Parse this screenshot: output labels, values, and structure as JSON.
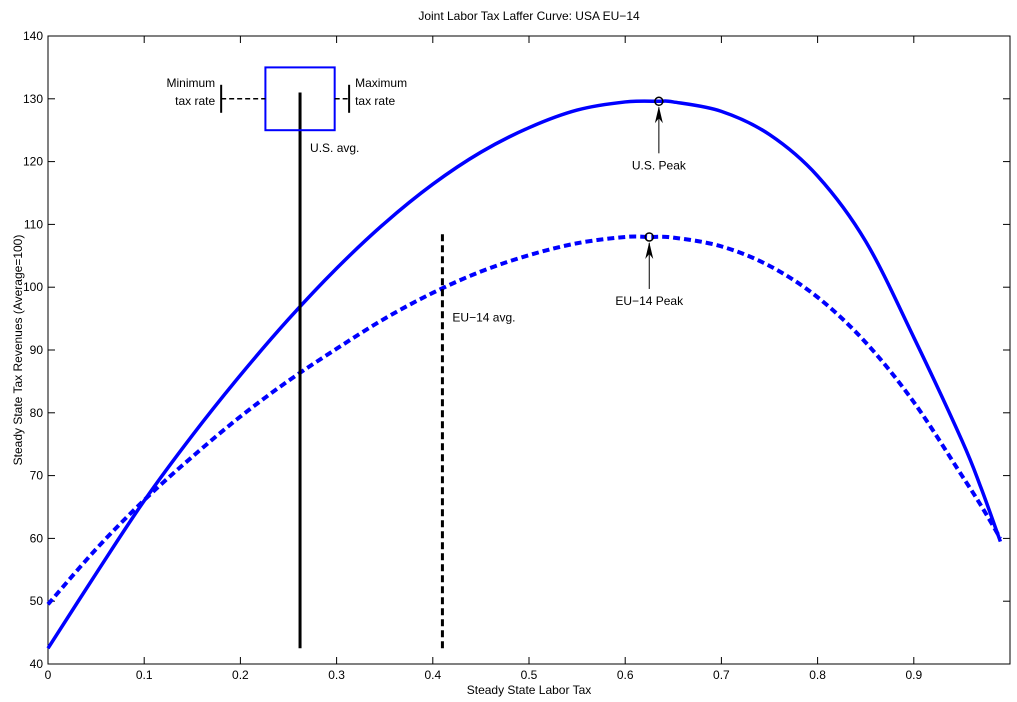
{
  "chart_data": {
    "type": "line",
    "title": "Joint Labor Tax Laffer Curve: USA  EU−14",
    "xlabel": "Steady State Labor Tax",
    "ylabel": "Steady State Tax Revenues (Average=100)",
    "xlim": [
      0,
      1
    ],
    "ylim": [
      40,
      140
    ],
    "xticks": [
      0,
      0.1,
      0.2,
      0.3,
      0.4,
      0.5,
      0.6,
      0.7,
      0.8,
      0.9
    ],
    "xtick_labels": [
      "0",
      "0.1",
      "0.2",
      "0.3",
      "0.4",
      "0.5",
      "0.6",
      "0.7",
      "0.8",
      "0.9"
    ],
    "yticks": [
      40,
      50,
      60,
      70,
      80,
      90,
      100,
      110,
      120,
      130,
      140
    ],
    "ytick_labels": [
      "40",
      "50",
      "60",
      "70",
      "80",
      "90",
      "100",
      "110",
      "120",
      "130",
      "140"
    ],
    "grid": false,
    "colors": {
      "curve": "#0000ff",
      "vline": "#000000",
      "axis": "#000000"
    },
    "series": [
      {
        "style": "solid",
        "x": [
          0,
          0.05,
          0.1,
          0.15,
          0.2,
          0.25,
          0.3,
          0.35,
          0.4,
          0.45,
          0.5,
          0.55,
          0.6,
          0.635,
          0.65,
          0.7,
          0.75,
          0.8,
          0.85,
          0.9,
          0.95,
          0.97,
          0.99
        ],
        "y": [
          42.5,
          54.4,
          66.0,
          76.4,
          86.0,
          94.9,
          103.0,
          110.2,
          116.4,
          121.5,
          125.4,
          128.2,
          129.5,
          129.6,
          129.5,
          128.0,
          124.3,
          117.7,
          107.3,
          92.0,
          75.6,
          68.0,
          59.5
        ]
      },
      {
        "style": "dashed",
        "x": [
          0,
          0.05,
          0.1,
          0.15,
          0.2,
          0.25,
          0.3,
          0.35,
          0.4,
          0.45,
          0.5,
          0.55,
          0.6,
          0.625,
          0.65,
          0.7,
          0.75,
          0.8,
          0.85,
          0.9,
          0.95,
          0.97,
          0.99
        ],
        "y": [
          49.5,
          58.3,
          66.1,
          73.0,
          79.4,
          85.1,
          90.2,
          95.0,
          99.1,
          102.5,
          105.1,
          107.0,
          108.0,
          108.0,
          107.9,
          106.5,
          103.4,
          98.4,
          91.2,
          81.7,
          70.0,
          65.2,
          60.0
        ]
      }
    ],
    "vlines": [
      {
        "x": 0.262,
        "y0": 42.5,
        "y1": 131,
        "style": "solid"
      },
      {
        "x": 0.41,
        "y0": 42.5,
        "y1": 108.5,
        "style": "dashed"
      }
    ],
    "peaks": [
      {
        "x": 0.635,
        "y": 129.6,
        "label": "U.S. Peak"
      },
      {
        "x": 0.625,
        "y": 108.0,
        "label": "EU−14 Peak"
      }
    ],
    "boxplot": {
      "min": 0.18,
      "q1": 0.226,
      "q3": 0.298,
      "max": 0.313,
      "y_center": 130,
      "y_low": 125,
      "y_high": 135
    },
    "annotations": {
      "us_avg": "U.S. avg.",
      "eu_avg": "EU−14 avg.",
      "min_line1": "Minimum",
      "min_line2": "tax rate",
      "max_line1": "Maximum",
      "max_line2": "tax rate"
    }
  }
}
